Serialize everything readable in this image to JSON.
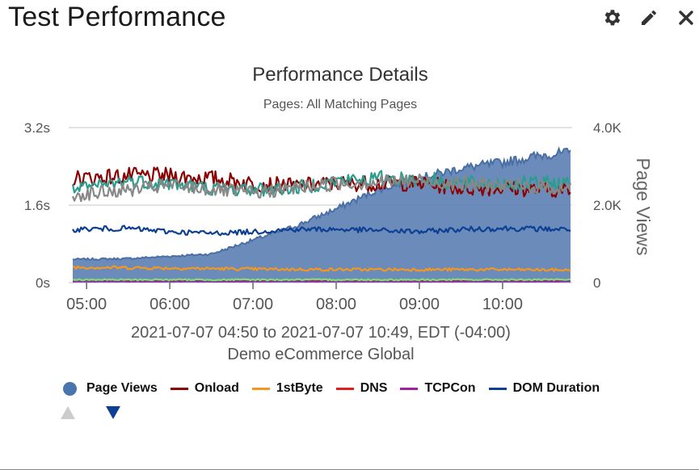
{
  "widget": {
    "title": "Test Performance"
  },
  "toolbar": {
    "settings_icon": "gear-icon",
    "edit_icon": "pencil-icon",
    "close_icon": "close-icon"
  },
  "chart_data": {
    "type": "line",
    "title": "Performance Details",
    "subtitle": "Pages: All Matching Pages",
    "xlabel": "2021-07-07 04:50 to 2021-07-07 10:49, EDT (-04:00)",
    "xlabel2": "Demo eCommerce Global",
    "y2label": "Page Views",
    "x_range": [
      "04:50",
      "10:49"
    ],
    "x_ticks": [
      "05:00",
      "06:00",
      "07:00",
      "08:00",
      "09:00",
      "10:00"
    ],
    "y_left": {
      "ticks": [
        "0s",
        "1.6s",
        "3.2s"
      ],
      "min": 0,
      "max": 3.2,
      "unit": "s"
    },
    "y_right": {
      "ticks": [
        "0",
        "2.0K",
        "4.0K"
      ],
      "min": 0,
      "max": 4000
    },
    "grid": true,
    "legend_position": "bottom",
    "series": [
      {
        "name": "Page Views",
        "type": "area",
        "axis": "right",
        "color": "#5b7fb2",
        "anchors": [
          [
            "04:50",
            600
          ],
          [
            "05:30",
            620
          ],
          [
            "06:00",
            680
          ],
          [
            "06:30",
            740
          ],
          [
            "07:00",
            1100
          ],
          [
            "07:30",
            1450
          ],
          [
            "08:00",
            1900
          ],
          [
            "08:30",
            2400
          ],
          [
            "09:00",
            2700
          ],
          [
            "09:30",
            2950
          ],
          [
            "10:00",
            3100
          ],
          [
            "10:30",
            3300
          ],
          [
            "10:49",
            3350
          ]
        ]
      },
      {
        "name": "Onload",
        "axis": "left",
        "color": "#8b0000",
        "anchors": [
          [
            "04:50",
            2.15
          ],
          [
            "05:30",
            2.2
          ],
          [
            "06:00",
            2.2
          ],
          [
            "06:30",
            2.15
          ],
          [
            "07:00",
            2.05
          ],
          [
            "07:30",
            2.0
          ],
          [
            "08:00",
            2.05
          ],
          [
            "08:30",
            2.05
          ],
          [
            "09:00",
            2.05
          ],
          [
            "09:30",
            1.95
          ],
          [
            "10:00",
            1.95
          ],
          [
            "10:49",
            1.9
          ]
        ]
      },
      {
        "name": "1stByte",
        "axis": "left",
        "color": "#f5961e",
        "anchors": [
          [
            "04:50",
            0.32
          ],
          [
            "06:00",
            0.3
          ],
          [
            "07:00",
            0.28
          ],
          [
            "08:00",
            0.27
          ],
          [
            "09:00",
            0.27
          ],
          [
            "10:00",
            0.27
          ],
          [
            "10:49",
            0.26
          ]
        ]
      },
      {
        "name": "DNS",
        "axis": "left",
        "color": "#e01f1f",
        "anchors": [
          [
            "04:50",
            0.04
          ],
          [
            "10:49",
            0.04
          ]
        ]
      },
      {
        "name": "TCPCon",
        "axis": "left",
        "color": "#a020a0",
        "anchors": [
          [
            "04:50",
            0.03
          ],
          [
            "10:49",
            0.03
          ]
        ]
      },
      {
        "name": "DOM Duration",
        "axis": "left",
        "color": "#0d3f94",
        "anchors": [
          [
            "04:50",
            1.1
          ],
          [
            "05:30",
            1.12
          ],
          [
            "06:00",
            1.05
          ],
          [
            "06:30",
            1.02
          ],
          [
            "07:00",
            1.05
          ],
          [
            "07:30",
            1.1
          ],
          [
            "08:00",
            1.1
          ],
          [
            "08:30",
            1.08
          ],
          [
            "09:00",
            1.05
          ],
          [
            "09:30",
            1.1
          ],
          [
            "10:00",
            1.12
          ],
          [
            "10:49",
            1.1
          ]
        ]
      },
      {
        "axis": "left",
        "color": "#2a9d8f",
        "anchors": [
          [
            "04:50",
            1.9
          ],
          [
            "05:30",
            2.1
          ],
          [
            "06:00",
            2.05
          ],
          [
            "06:30",
            1.95
          ],
          [
            "07:00",
            1.92
          ],
          [
            "07:30",
            1.95
          ],
          [
            "08:00",
            2.1
          ],
          [
            "08:30",
            2.15
          ],
          [
            "09:00",
            2.15
          ],
          [
            "09:30",
            2.05
          ],
          [
            "10:00",
            2.05
          ],
          [
            "10:49",
            2.05
          ]
        ]
      },
      {
        "axis": "left",
        "color": "#888888",
        "anchors": [
          [
            "04:50",
            1.8
          ],
          [
            "06:00",
            2.0
          ],
          [
            "07:00",
            1.85
          ],
          [
            "08:00",
            2.05
          ],
          [
            "09:00",
            2.1
          ],
          [
            "10:00",
            2.0
          ],
          [
            "10:49",
            1.95
          ]
        ]
      },
      {
        "axis": "left",
        "color": "#7ee06b",
        "anchors": [
          [
            "04:50",
            0.06
          ],
          [
            "10:49",
            0.06
          ]
        ]
      }
    ]
  },
  "legend_items": [
    {
      "label": "Page Views",
      "kind": "dot",
      "color": "#4a74ad"
    },
    {
      "label": "Onload",
      "kind": "line",
      "color": "#8b0000"
    },
    {
      "label": "1stByte",
      "kind": "line",
      "color": "#f5961e"
    },
    {
      "label": "DNS",
      "kind": "line",
      "color": "#e01f1f"
    },
    {
      "label": "TCPCon",
      "kind": "line",
      "color": "#a020a0"
    },
    {
      "label": "DOM Duration",
      "kind": "line",
      "color": "#0d3f94"
    }
  ],
  "pager": {
    "up_icon": "triangle-up-icon",
    "down_icon": "triangle-down-icon",
    "up_color": "#cccccc",
    "down_color": "#0d3f94"
  }
}
